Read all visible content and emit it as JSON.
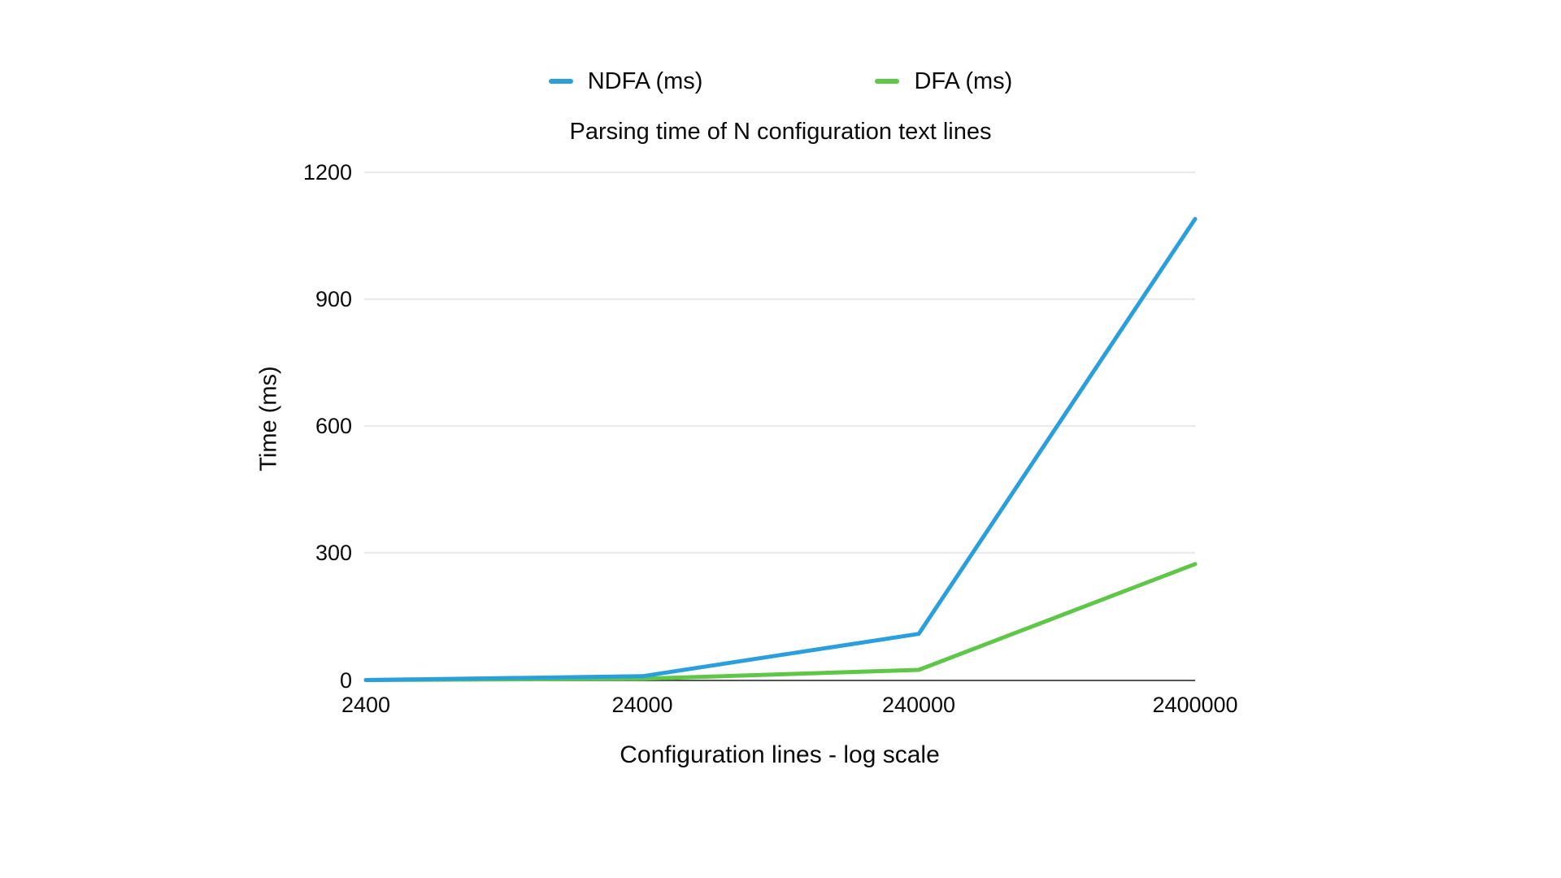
{
  "chart_data": {
    "type": "line",
    "title": "Parsing time of N configuration text lines",
    "xlabel": "Configuration lines - log scale",
    "ylabel": "Time (ms)",
    "x_scale": "log",
    "categories": [
      "2400",
      "24000",
      "240000",
      "2400000"
    ],
    "yticks_display": [
      "1200",
      "900",
      "600",
      "300",
      "0"
    ],
    "ylim": [
      0,
      1200
    ],
    "grid": "horizontal-only",
    "legend_position": "top-center",
    "axis_line_color": "#3d3d3d",
    "gridline_color": "#e4e4e4",
    "series": [
      {
        "name": "NDFA (ms)",
        "color": "#2b9fdb",
        "values": [
          1,
          10,
          110,
          1090
        ]
      },
      {
        "name": "DFA (ms)",
        "color": "#5ec748",
        "values": [
          1,
          4,
          25,
          275
        ]
      }
    ]
  }
}
